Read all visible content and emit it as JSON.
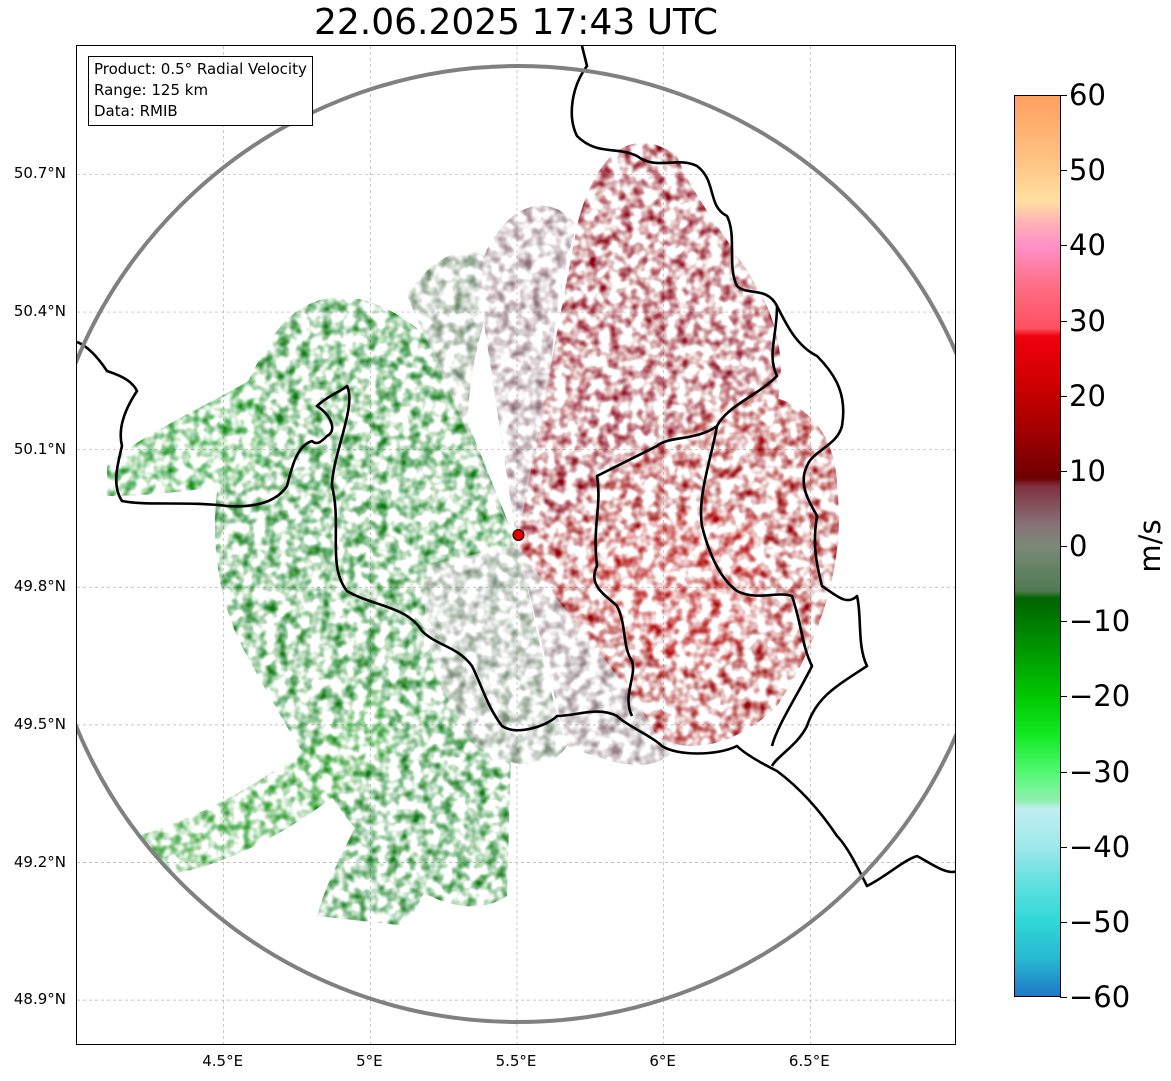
{
  "title": "22.06.2025 17:43 UTC",
  "info_box": {
    "line1": "Product: 0.5° Radial Velocity",
    "line2": "Range: 125 km",
    "line3": "Data: RMIB"
  },
  "map": {
    "extent": {
      "lon_min": 4.0,
      "lon_max": 7.0,
      "lat_min": 48.8,
      "lat_max": 50.98
    },
    "radar_site": {
      "lon": 5.505,
      "lat": 49.914,
      "color": "#e00000"
    },
    "range_ring_color": "#808080",
    "gridlines": true,
    "lat_ticks": [
      {
        "value": 48.9,
        "label": "48.9°N"
      },
      {
        "value": 49.2,
        "label": "49.2°N"
      },
      {
        "value": 49.5,
        "label": "49.5°N"
      },
      {
        "value": 49.8,
        "label": "49.8°N"
      },
      {
        "value": 50.1,
        "label": "50.1°N"
      },
      {
        "value": 50.4,
        "label": "50.4°N"
      },
      {
        "value": 50.7,
        "label": "50.7°N"
      }
    ],
    "lon_ticks": [
      {
        "value": 4.5,
        "label": "4.5°E"
      },
      {
        "value": 5.0,
        "label": "5°E"
      },
      {
        "value": 5.5,
        "label": "5.5°E"
      },
      {
        "value": 6.0,
        "label": "6°E"
      },
      {
        "value": 6.5,
        "label": "6.5°E"
      }
    ]
  },
  "colorbar": {
    "unit": "m/s",
    "min": -60,
    "max": 60,
    "ticks": [
      {
        "value": 60,
        "label": "60"
      },
      {
        "value": 50,
        "label": "50"
      },
      {
        "value": 40,
        "label": "40"
      },
      {
        "value": 30,
        "label": "30"
      },
      {
        "value": 20,
        "label": "20"
      },
      {
        "value": 10,
        "label": "10"
      },
      {
        "value": 0,
        "label": "0"
      },
      {
        "value": -10,
        "label": "−10"
      },
      {
        "value": -20,
        "label": "−20"
      },
      {
        "value": -30,
        "label": "−30"
      },
      {
        "value": -40,
        "label": "−40"
      },
      {
        "value": -50,
        "label": "−50"
      },
      {
        "value": -60,
        "label": "−60"
      }
    ],
    "stops": [
      {
        "value": -60,
        "color": "#1f78c8"
      },
      {
        "value": -55,
        "color": "#28b8d0"
      },
      {
        "value": -50,
        "color": "#30d8d8"
      },
      {
        "value": -45,
        "color": "#60e0e0"
      },
      {
        "value": -40,
        "color": "#a0e8ea"
      },
      {
        "value": -35,
        "color": "#c0eef0"
      },
      {
        "value": -34,
        "color": "#90f0b0"
      },
      {
        "value": -30,
        "color": "#50f870"
      },
      {
        "value": -25,
        "color": "#10e820"
      },
      {
        "value": -20,
        "color": "#00c800"
      },
      {
        "value": -15,
        "color": "#00a000"
      },
      {
        "value": -10,
        "color": "#007a00"
      },
      {
        "value": -7,
        "color": "#006400"
      },
      {
        "value": -6,
        "color": "#4f7a52"
      },
      {
        "value": 0,
        "color": "#7a8a78"
      },
      {
        "value": 3,
        "color": "#887078"
      },
      {
        "value": 8,
        "color": "#803040"
      },
      {
        "value": 9,
        "color": "#6e0000"
      },
      {
        "value": 15,
        "color": "#a00000"
      },
      {
        "value": 22,
        "color": "#d00000"
      },
      {
        "value": 28,
        "color": "#f00010"
      },
      {
        "value": 29,
        "color": "#ff5060"
      },
      {
        "value": 35,
        "color": "#ff7088"
      },
      {
        "value": 40,
        "color": "#ff90c8"
      },
      {
        "value": 43,
        "color": "#ffb0b8"
      },
      {
        "value": 46,
        "color": "#ffe0a0"
      },
      {
        "value": 52,
        "color": "#ffc080"
      },
      {
        "value": 60,
        "color": "#ffa060"
      }
    ]
  }
}
